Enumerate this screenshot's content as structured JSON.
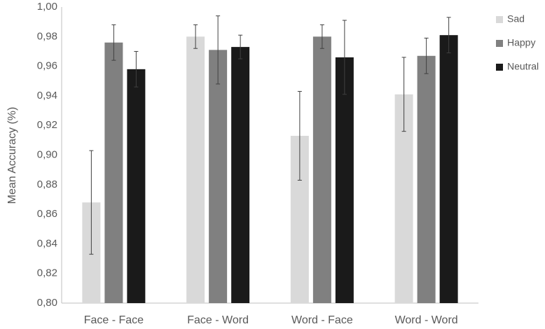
{
  "chart_data": {
    "type": "bar",
    "y_label": "Mean Accuracy (%)",
    "categories": [
      "Face - Face",
      "Face - Word",
      "Word - Face",
      "Word - Word"
    ],
    "series": [
      {
        "name": "Sad",
        "color": "#d9d9d9",
        "values": [
          0.868,
          0.98,
          0.913,
          0.941
        ],
        "errors": [
          0.035,
          0.008,
          0.03,
          0.025
        ]
      },
      {
        "name": "Happy",
        "color": "#808080",
        "values": [
          0.976,
          0.971,
          0.98,
          0.967
        ],
        "errors": [
          0.012,
          0.023,
          0.008,
          0.012
        ]
      },
      {
        "name": "Neutral",
        "color": "#1a1a1a",
        "values": [
          0.958,
          0.973,
          0.966,
          0.981
        ],
        "errors": [
          0.012,
          0.008,
          0.025,
          0.012
        ]
      }
    ],
    "ylim": [
      0.8,
      1.0
    ],
    "yticks": [
      {
        "value": 0.8,
        "label": "0,80"
      },
      {
        "value": 0.82,
        "label": "0,82"
      },
      {
        "value": 0.84,
        "label": "0,84"
      },
      {
        "value": 0.86,
        "label": "0,86"
      },
      {
        "value": 0.88,
        "label": "0,88"
      },
      {
        "value": 0.9,
        "label": "0,90"
      },
      {
        "value": 0.92,
        "label": "0,92"
      },
      {
        "value": 0.94,
        "label": "0,94"
      },
      {
        "value": 0.96,
        "label": "0,96"
      },
      {
        "value": 0.98,
        "label": "0,98"
      },
      {
        "value": 1.0,
        "label": "1,00"
      }
    ],
    "grid": false,
    "legend": "right"
  }
}
